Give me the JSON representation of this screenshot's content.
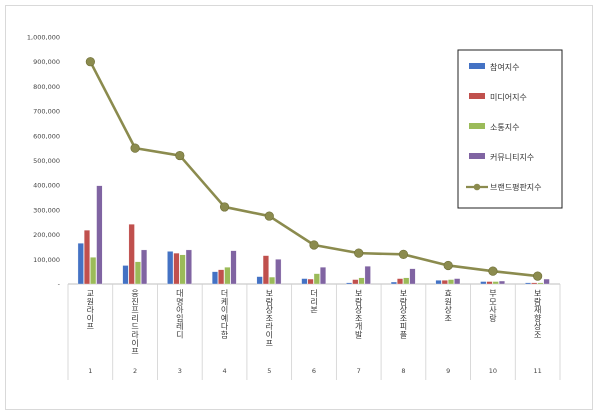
{
  "chart_data": {
    "type": "bar",
    "categories": [
      "교원라이프",
      "웅진프리드라이프",
      "대명아임레디",
      "더케이예다함",
      "보람상조라이프",
      "더리본",
      "보람상조개발",
      "보람상조피플",
      "효원상조",
      "부모사랑",
      "보람재향상조"
    ],
    "category_numbers": [
      "1",
      "2",
      "3",
      "4",
      "5",
      "6",
      "7",
      "8",
      "9",
      "10",
      "11"
    ],
    "ylim": [
      0,
      1000000
    ],
    "yticks": [
      "-",
      "100,000",
      "200,000",
      "300,000",
      "400,000",
      "500,000",
      "600,000",
      "700,000",
      "800,000",
      "900,000",
      "1,000,000"
    ],
    "legend_position": "right",
    "grid": false,
    "series": [
      {
        "name": "참여지수",
        "kind": "bar",
        "color": "#4472c4",
        "values": [
          165000,
          75000,
          132000,
          50000,
          30000,
          22000,
          5000,
          8000,
          15000,
          10000,
          5000
        ]
      },
      {
        "name": "미디어지수",
        "kind": "bar",
        "color": "#c0504d",
        "values": [
          218000,
          242000,
          125000,
          58000,
          115000,
          20000,
          18000,
          22000,
          15000,
          10000,
          5000
        ]
      },
      {
        "name": "소통지수",
        "kind": "bar",
        "color": "#9bbb59",
        "values": [
          108000,
          90000,
          118000,
          68000,
          28000,
          42000,
          25000,
          25000,
          18000,
          10000,
          5000
        ]
      },
      {
        "name": "커뮤니티지수",
        "kind": "bar",
        "color": "#8064a2",
        "values": [
          398000,
          138000,
          138000,
          135000,
          100000,
          68000,
          72000,
          62000,
          22000,
          12000,
          20000
        ]
      },
      {
        "name": "브랜드평판지수",
        "kind": "line",
        "color": "#8b8b4e",
        "values": [
          900000,
          550000,
          520000,
          312000,
          275000,
          158000,
          125000,
          120000,
          75000,
          52000,
          32000
        ]
      }
    ]
  }
}
